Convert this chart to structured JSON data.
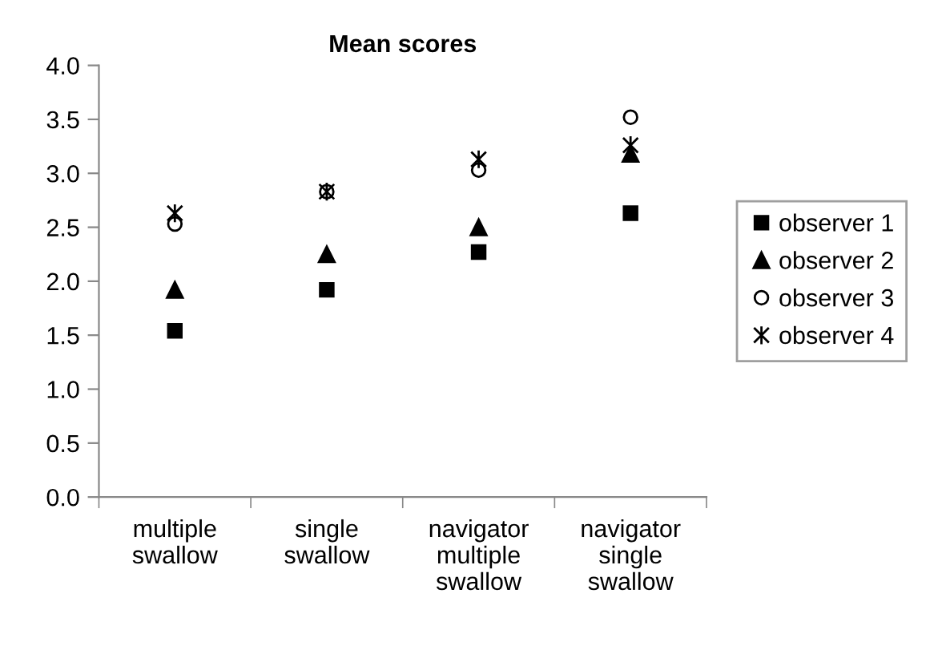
{
  "chart_data": {
    "type": "scatter",
    "title": "Mean scores",
    "categories": [
      "multiple\nswallow",
      "single\nswallow",
      "navigator\nmultiple\nswallow",
      "navigator\nsingle\nswallow"
    ],
    "series": [
      {
        "name": "observer 1",
        "color": "#000000",
        "marker": "square",
        "values": [
          1.54,
          1.92,
          2.27,
          2.63
        ]
      },
      {
        "name": "observer 2",
        "color": "#000000",
        "marker": "triangle",
        "values": [
          1.92,
          2.25,
          2.5,
          3.18
        ]
      },
      {
        "name": "observer 3",
        "color": "#000000",
        "marker": "circle",
        "values": [
          2.53,
          2.83,
          3.03,
          3.52
        ]
      },
      {
        "name": "observer 4",
        "color": "#000000",
        "marker": "cross",
        "values": [
          2.63,
          2.83,
          3.13,
          3.26
        ]
      }
    ],
    "ylim": [
      0,
      4
    ],
    "yticks": [
      {
        "value": 0,
        "label": "0.0"
      },
      {
        "value": 0.5,
        "label": "0.5"
      },
      {
        "value": 1,
        "label": "1.0"
      },
      {
        "value": 1.5,
        "label": "1.5"
      },
      {
        "value": 2,
        "label": "2.0"
      },
      {
        "value": 2.5,
        "label": "2.5"
      },
      {
        "value": 3,
        "label": "3.0"
      },
      {
        "value": 3.5,
        "label": "3.5"
      },
      {
        "value": 4,
        "label": "4.0"
      }
    ],
    "grid": false,
    "legend": "right"
  }
}
